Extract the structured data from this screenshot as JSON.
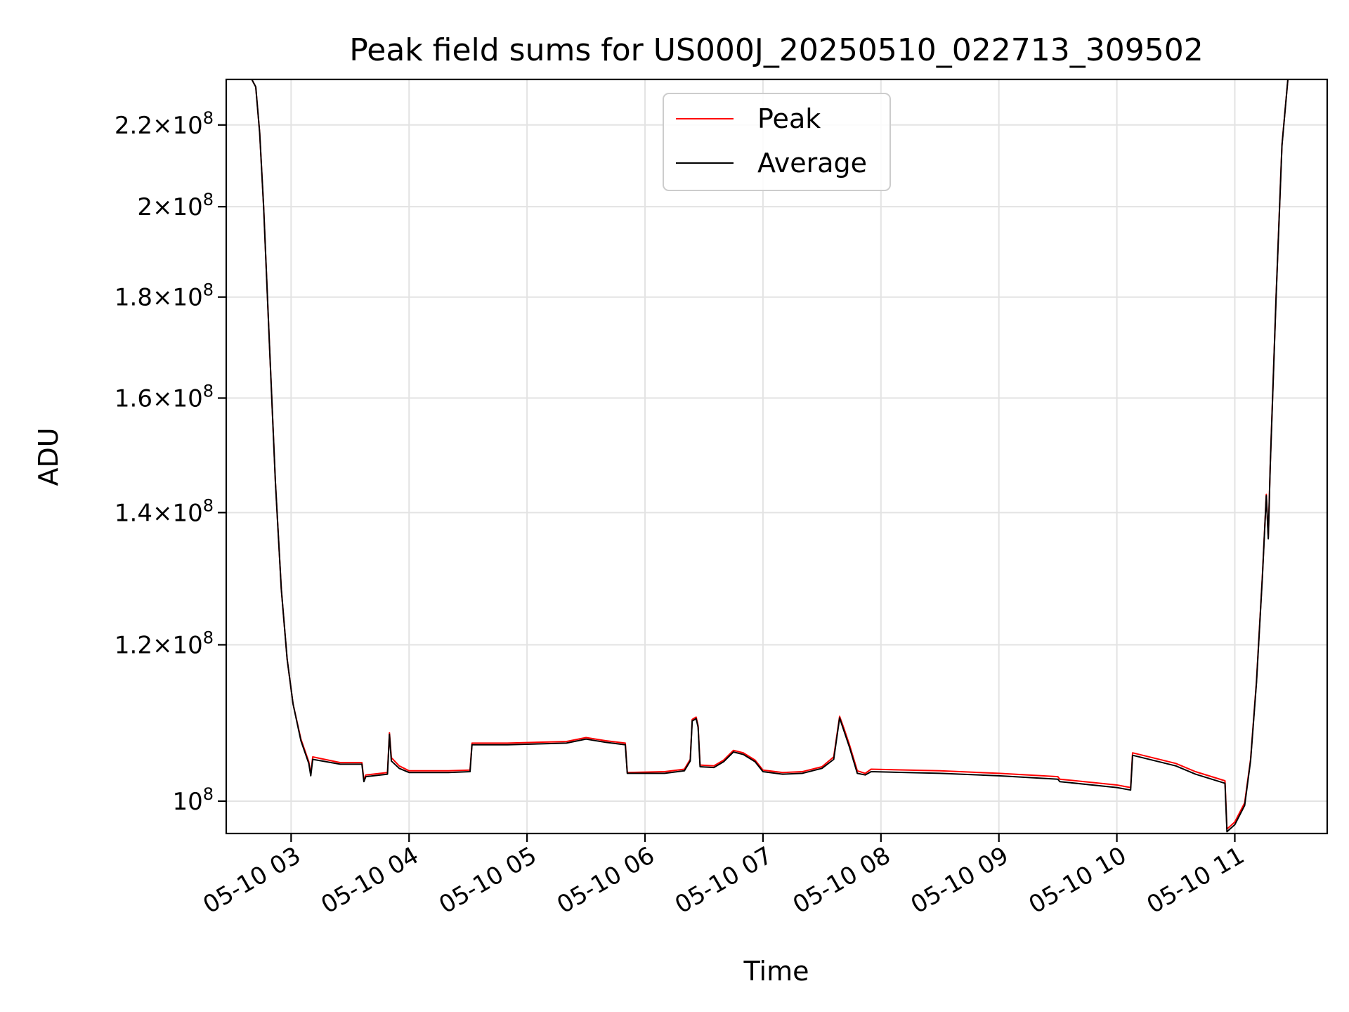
{
  "chart_data": {
    "type": "line",
    "title": "Peak field sums for US000J_20250510_022713_309502",
    "xlabel": "Time",
    "ylabel": "ADU",
    "y_scale": "log",
    "xlim": [
      "2025-05-10 02:27",
      "2025-05-10 11:47"
    ],
    "ylim": [
      96300000,
      232000000
    ],
    "grid": true,
    "legend_position": "upper-center",
    "x_ticks": [
      {
        "time": "2025-05-10 03:00",
        "label": "05-10 03"
      },
      {
        "time": "2025-05-10 04:00",
        "label": "05-10 04"
      },
      {
        "time": "2025-05-10 05:00",
        "label": "05-10 05"
      },
      {
        "time": "2025-05-10 06:00",
        "label": "05-10 06"
      },
      {
        "time": "2025-05-10 07:00",
        "label": "05-10 07"
      },
      {
        "time": "2025-05-10 08:00",
        "label": "05-10 08"
      },
      {
        "time": "2025-05-10 09:00",
        "label": "05-10 09"
      },
      {
        "time": "2025-05-10 10:00",
        "label": "05-10 10"
      },
      {
        "time": "2025-05-10 11:00",
        "label": "05-10 11"
      }
    ],
    "y_ticks": [
      {
        "value": 100000000,
        "mantissa": "",
        "exponent": "8"
      },
      {
        "value": 120000000,
        "mantissa": "1.2",
        "exponent": "8"
      },
      {
        "value": 140000000,
        "mantissa": "1.4",
        "exponent": "8"
      },
      {
        "value": 160000000,
        "mantissa": "1.6",
        "exponent": "8"
      },
      {
        "value": 180000000,
        "mantissa": "1.8",
        "exponent": "8"
      },
      {
        "value": 200000000,
        "mantissa": "2",
        "exponent": "8"
      },
      {
        "value": 220000000,
        "mantissa": "2.2",
        "exponent": "8"
      }
    ],
    "series": [
      {
        "name": "Peak",
        "color": "#ff0000",
        "points": [
          [
            "2025-05-10 02:27",
            232000000
          ],
          [
            "2025-05-10 02:40",
            232000000
          ],
          [
            "2025-05-10 02:42",
            230000000
          ],
          [
            "2025-05-10 02:44",
            218000000
          ],
          [
            "2025-05-10 02:46",
            200000000
          ],
          [
            "2025-05-10 02:49",
            170000000
          ],
          [
            "2025-05-10 02:52",
            145000000
          ],
          [
            "2025-05-10 02:55",
            128000000
          ],
          [
            "2025-05-10 02:58",
            118000000
          ],
          [
            "2025-05-10 03:01",
            112000000
          ],
          [
            "2025-05-10 03:05",
            107500000
          ],
          [
            "2025-05-10 03:09",
            104700000
          ],
          [
            "2025-05-10 03:10",
            103200000
          ],
          [
            "2025-05-10 03:11",
            105300000
          ],
          [
            "2025-05-10 03:25",
            104600000
          ],
          [
            "2025-05-10 03:36",
            104600000
          ],
          [
            "2025-05-10 03:37",
            102500000
          ],
          [
            "2025-05-10 03:38",
            103100000
          ],
          [
            "2025-05-10 03:49",
            103400000
          ],
          [
            "2025-05-10 03:50",
            108300000
          ],
          [
            "2025-05-10 03:51",
            105200000
          ],
          [
            "2025-05-10 03:55",
            104200000
          ],
          [
            "2025-05-10 04:00",
            103600000
          ],
          [
            "2025-05-10 04:20",
            103600000
          ],
          [
            "2025-05-10 04:31",
            103700000
          ],
          [
            "2025-05-10 04:32",
            107000000
          ],
          [
            "2025-05-10 04:50",
            107000000
          ],
          [
            "2025-05-10 05:20",
            107200000
          ],
          [
            "2025-05-10 05:30",
            107700000
          ],
          [
            "2025-05-10 05:40",
            107300000
          ],
          [
            "2025-05-10 05:50",
            107000000
          ],
          [
            "2025-05-10 05:51",
            103400000
          ],
          [
            "2025-05-10 06:10",
            103500000
          ],
          [
            "2025-05-10 06:20",
            103800000
          ],
          [
            "2025-05-10 06:23",
            105000000
          ],
          [
            "2025-05-10 06:24",
            110000000
          ],
          [
            "2025-05-10 06:26",
            110300000
          ],
          [
            "2025-05-10 06:27",
            109200000
          ],
          [
            "2025-05-10 06:28",
            104300000
          ],
          [
            "2025-05-10 06:35",
            104200000
          ],
          [
            "2025-05-10 06:40",
            104900000
          ],
          [
            "2025-05-10 06:45",
            106100000
          ],
          [
            "2025-05-10 06:50",
            105800000
          ],
          [
            "2025-05-10 06:56",
            104900000
          ],
          [
            "2025-05-10 07:00",
            103700000
          ],
          [
            "2025-05-10 07:10",
            103400000
          ],
          [
            "2025-05-10 07:20",
            103500000
          ],
          [
            "2025-05-10 07:30",
            104100000
          ],
          [
            "2025-05-10 07:36",
            105300000
          ],
          [
            "2025-05-10 07:39",
            110400000
          ],
          [
            "2025-05-10 07:41",
            109000000
          ],
          [
            "2025-05-10 07:44",
            106800000
          ],
          [
            "2025-05-10 07:48",
            103600000
          ],
          [
            "2025-05-10 07:52",
            103300000
          ],
          [
            "2025-05-10 07:55",
            103800000
          ],
          [
            "2025-05-10 08:30",
            103600000
          ],
          [
            "2025-05-10 09:00",
            103300000
          ],
          [
            "2025-05-10 09:30",
            102900000
          ],
          [
            "2025-05-10 09:31",
            102600000
          ],
          [
            "2025-05-10 10:00",
            101900000
          ],
          [
            "2025-05-10 10:07",
            101600000
          ],
          [
            "2025-05-10 10:08",
            105800000
          ],
          [
            "2025-05-10 10:30",
            104500000
          ],
          [
            "2025-05-10 10:40",
            103500000
          ],
          [
            "2025-05-10 10:55",
            102400000
          ],
          [
            "2025-05-10 10:56",
            96800000
          ],
          [
            "2025-05-10 11:00",
            97600000
          ],
          [
            "2025-05-10 11:05",
            99800000
          ],
          [
            "2025-05-10 11:08",
            105000000
          ],
          [
            "2025-05-10 11:11",
            115000000
          ],
          [
            "2025-05-10 11:14",
            130000000
          ],
          [
            "2025-05-10 11:16",
            143000000
          ],
          [
            "2025-05-10 11:17",
            136000000
          ],
          [
            "2025-05-10 11:18",
            148000000
          ],
          [
            "2025-05-10 11:21",
            180000000
          ],
          [
            "2025-05-10 11:24",
            215000000
          ],
          [
            "2025-05-10 11:27",
            232000000
          ],
          [
            "2025-05-10 11:47",
            232000000
          ]
        ]
      },
      {
        "name": "Average",
        "color": "#000000",
        "points": [
          [
            "2025-05-10 02:27",
            232000000
          ],
          [
            "2025-05-10 02:40",
            232000000
          ],
          [
            "2025-05-10 02:42",
            230000000
          ],
          [
            "2025-05-10 02:44",
            218000000
          ],
          [
            "2025-05-10 02:46",
            200000000
          ],
          [
            "2025-05-10 02:49",
            170000000
          ],
          [
            "2025-05-10 02:52",
            145000000
          ],
          [
            "2025-05-10 02:55",
            128000000
          ],
          [
            "2025-05-10 02:58",
            118000000
          ],
          [
            "2025-05-10 03:01",
            112000000
          ],
          [
            "2025-05-10 03:05",
            107300000
          ],
          [
            "2025-05-10 03:09",
            104500000
          ],
          [
            "2025-05-10 03:10",
            103000000
          ],
          [
            "2025-05-10 03:11",
            105000000
          ],
          [
            "2025-05-10 03:25",
            104400000
          ],
          [
            "2025-05-10 03:36",
            104400000
          ],
          [
            "2025-05-10 03:37",
            102300000
          ],
          [
            "2025-05-10 03:38",
            102900000
          ],
          [
            "2025-05-10 03:49",
            103200000
          ],
          [
            "2025-05-10 03:50",
            108100000
          ],
          [
            "2025-05-10 03:51",
            104800000
          ],
          [
            "2025-05-10 03:55",
            103900000
          ],
          [
            "2025-05-10 04:00",
            103400000
          ],
          [
            "2025-05-10 04:20",
            103400000
          ],
          [
            "2025-05-10 04:31",
            103500000
          ],
          [
            "2025-05-10 04:32",
            106800000
          ],
          [
            "2025-05-10 04:50",
            106800000
          ],
          [
            "2025-05-10 05:20",
            107000000
          ],
          [
            "2025-05-10 05:30",
            107500000
          ],
          [
            "2025-05-10 05:40",
            107100000
          ],
          [
            "2025-05-10 05:50",
            106800000
          ],
          [
            "2025-05-10 05:51",
            103300000
          ],
          [
            "2025-05-10 06:10",
            103300000
          ],
          [
            "2025-05-10 06:20",
            103600000
          ],
          [
            "2025-05-10 06:23",
            104800000
          ],
          [
            "2025-05-10 06:24",
            109800000
          ],
          [
            "2025-05-10 06:26",
            110100000
          ],
          [
            "2025-05-10 06:27",
            109000000
          ],
          [
            "2025-05-10 06:28",
            104100000
          ],
          [
            "2025-05-10 06:35",
            104000000
          ],
          [
            "2025-05-10 06:40",
            104700000
          ],
          [
            "2025-05-10 06:45",
            105900000
          ],
          [
            "2025-05-10 06:50",
            105600000
          ],
          [
            "2025-05-10 06:56",
            104700000
          ],
          [
            "2025-05-10 07:00",
            103500000
          ],
          [
            "2025-05-10 07:10",
            103200000
          ],
          [
            "2025-05-10 07:20",
            103300000
          ],
          [
            "2025-05-10 07:30",
            103900000
          ],
          [
            "2025-05-10 07:36",
            105000000
          ],
          [
            "2025-05-10 07:39",
            110200000
          ],
          [
            "2025-05-10 07:41",
            108700000
          ],
          [
            "2025-05-10 07:44",
            106500000
          ],
          [
            "2025-05-10 07:48",
            103300000
          ],
          [
            "2025-05-10 07:52",
            103100000
          ],
          [
            "2025-05-10 07:55",
            103500000
          ],
          [
            "2025-05-10 08:30",
            103300000
          ],
          [
            "2025-05-10 09:00",
            103000000
          ],
          [
            "2025-05-10 09:30",
            102600000
          ],
          [
            "2025-05-10 09:31",
            102300000
          ],
          [
            "2025-05-10 10:00",
            101600000
          ],
          [
            "2025-05-10 10:07",
            101300000
          ],
          [
            "2025-05-10 10:08",
            105500000
          ],
          [
            "2025-05-10 10:30",
            104200000
          ],
          [
            "2025-05-10 10:40",
            103200000
          ],
          [
            "2025-05-10 10:55",
            102100000
          ],
          [
            "2025-05-10 10:56",
            96500000
          ],
          [
            "2025-05-10 11:00",
            97300000
          ],
          [
            "2025-05-10 11:05",
            99500000
          ],
          [
            "2025-05-10 11:08",
            104800000
          ],
          [
            "2025-05-10 11:11",
            114800000
          ],
          [
            "2025-05-10 11:14",
            129800000
          ],
          [
            "2025-05-10 11:16",
            142800000
          ],
          [
            "2025-05-10 11:17",
            135800000
          ],
          [
            "2025-05-10 11:18",
            147800000
          ],
          [
            "2025-05-10 11:21",
            179800000
          ],
          [
            "2025-05-10 11:24",
            214800000
          ],
          [
            "2025-05-10 11:27",
            232000000
          ],
          [
            "2025-05-10 11:47",
            232000000
          ]
        ]
      }
    ]
  }
}
